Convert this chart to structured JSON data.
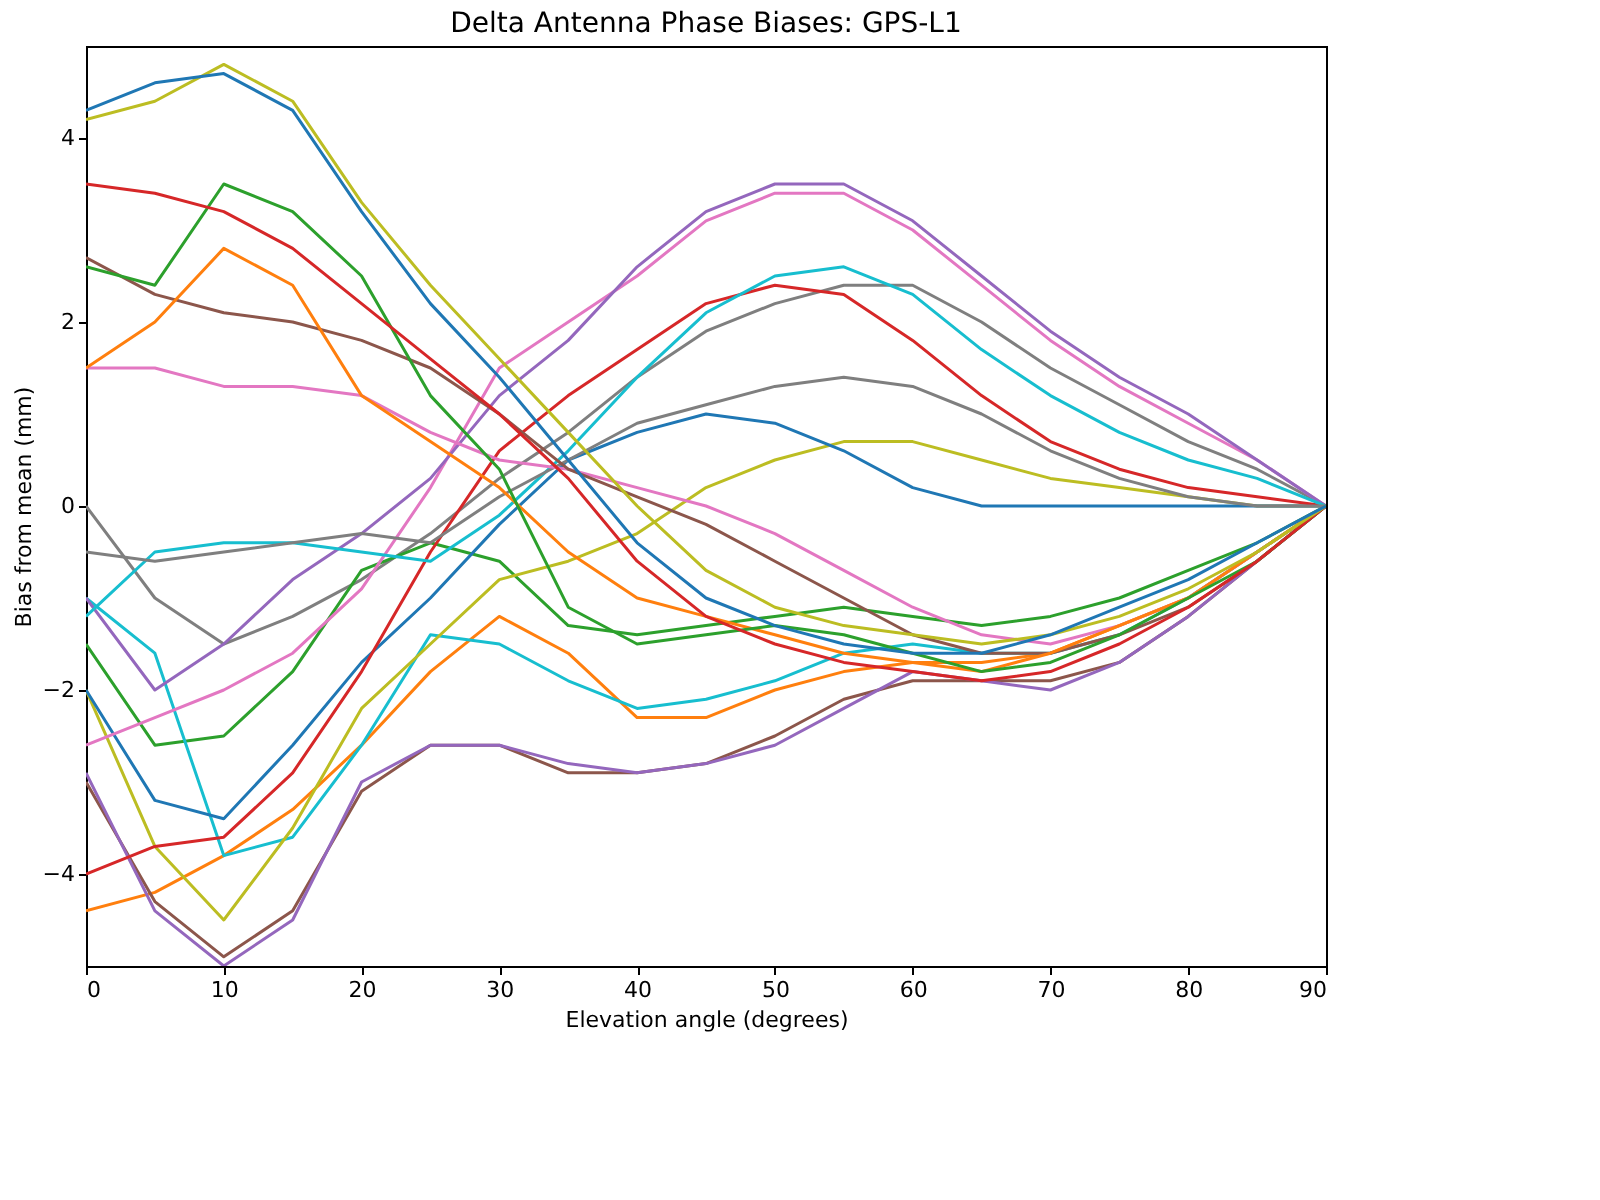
{
  "chart_data": {
    "type": "line",
    "title": "Delta Antenna Phase Biases: GPS-L1",
    "xlabel": "Elevation angle (degrees)",
    "ylabel": "Bias from mean (mm)",
    "x": [
      0,
      5,
      10,
      15,
      20,
      25,
      30,
      35,
      40,
      45,
      50,
      55,
      60,
      65,
      70,
      75,
      80,
      85,
      90
    ],
    "xlim": [
      0,
      90
    ],
    "xticks": [
      0,
      10,
      20,
      30,
      40,
      50,
      60,
      70,
      80,
      90
    ],
    "ylim": [
      -5,
      5
    ],
    "yticks": [
      -4,
      -2,
      0,
      2,
      4
    ],
    "grid": false,
    "legend": false,
    "marker": "none",
    "line_style": "solid",
    "series": [
      {
        "color": "#1f77b4",
        "values": [
          4.3,
          4.6,
          4.7,
          4.3,
          3.2,
          2.2,
          1.4,
          0.5,
          -0.4,
          -1.0,
          -1.3,
          -1.5,
          -1.6,
          -1.6,
          -1.4,
          -1.1,
          -0.8,
          -0.4,
          0
        ]
      },
      {
        "color": "#bcbd22",
        "values": [
          4.2,
          4.4,
          4.8,
          4.4,
          3.3,
          2.4,
          1.6,
          0.8,
          0.0,
          -0.7,
          -1.1,
          -1.3,
          -1.4,
          -1.5,
          -1.4,
          -1.2,
          -0.9,
          -0.5,
          0
        ]
      },
      {
        "color": "#d62728",
        "values": [
          3.5,
          3.4,
          3.2,
          2.8,
          2.2,
          1.6,
          1.0,
          0.3,
          -0.6,
          -1.2,
          -1.5,
          -1.7,
          -1.8,
          -1.9,
          -1.8,
          -1.5,
          -1.1,
          -0.6,
          0
        ]
      },
      {
        "color": "#2ca02c",
        "values": [
          2.6,
          2.4,
          3.5,
          3.2,
          2.5,
          1.2,
          0.4,
          -1.1,
          -1.5,
          -1.4,
          -1.3,
          -1.4,
          -1.6,
          -1.8,
          -1.7,
          -1.4,
          -1.0,
          -0.6,
          0
        ]
      },
      {
        "color": "#ff7f0e",
        "values": [
          1.5,
          2.0,
          2.8,
          2.4,
          1.2,
          0.7,
          0.2,
          -0.5,
          -1.0,
          -1.2,
          -1.4,
          -1.6,
          -1.7,
          -1.8,
          -1.6,
          -1.3,
          -1.0,
          -0.5,
          0
        ]
      },
      {
        "color": "#8c564b",
        "values": [
          2.7,
          2.3,
          2.1,
          2.0,
          1.8,
          1.5,
          1.0,
          0.4,
          0.1,
          -0.2,
          -0.6,
          -1.0,
          -1.4,
          -1.6,
          -1.6,
          -1.4,
          -1.1,
          -0.6,
          0
        ]
      },
      {
        "color": "#e377c2",
        "values": [
          1.5,
          1.5,
          1.3,
          1.3,
          1.2,
          0.8,
          0.5,
          0.4,
          0.2,
          0.0,
          -0.3,
          -0.7,
          -1.1,
          -1.4,
          -1.5,
          -1.3,
          -1.0,
          -0.5,
          0
        ]
      },
      {
        "color": "#7f7f7f",
        "values": [
          -0.5,
          -0.6,
          -0.5,
          -0.4,
          -0.3,
          -0.4,
          0.1,
          0.5,
          0.9,
          1.1,
          1.3,
          1.4,
          1.3,
          1.0,
          0.6,
          0.3,
          0.1,
          0.0,
          0
        ]
      },
      {
        "color": "#17becf",
        "values": [
          -1.2,
          -0.5,
          -0.4,
          -0.4,
          -0.5,
          -0.6,
          -0.1,
          0.6,
          1.4,
          2.1,
          2.5,
          2.6,
          2.3,
          1.7,
          1.2,
          0.8,
          0.5,
          0.3,
          0
        ]
      },
      {
        "color": "#9467bd",
        "values": [
          -1.0,
          -2.0,
          -1.5,
          -0.8,
          -0.3,
          0.3,
          1.2,
          1.8,
          2.6,
          3.2,
          3.5,
          3.5,
          3.1,
          2.5,
          1.9,
          1.4,
          1.0,
          0.5,
          0
        ]
      },
      {
        "color": "#e377c2",
        "values": [
          -2.6,
          -2.3,
          -2.0,
          -1.6,
          -0.9,
          0.2,
          1.5,
          2.0,
          2.5,
          3.1,
          3.4,
          3.4,
          3.0,
          2.4,
          1.8,
          1.3,
          0.9,
          0.5,
          0
        ]
      },
      {
        "color": "#d62728",
        "values": [
          -4.0,
          -3.7,
          -3.6,
          -2.9,
          -1.8,
          -0.5,
          0.6,
          1.2,
          1.7,
          2.2,
          2.4,
          2.3,
          1.8,
          1.2,
          0.7,
          0.4,
          0.2,
          0.1,
          0
        ]
      },
      {
        "color": "#1f77b4",
        "values": [
          -2.0,
          -3.2,
          -3.4,
          -2.6,
          -1.7,
          -1.0,
          -0.2,
          0.5,
          0.8,
          1.0,
          0.9,
          0.6,
          0.2,
          0.0,
          0.0,
          0.0,
          0.0,
          0.0,
          0
        ]
      },
      {
        "color": "#bcbd22",
        "values": [
          -2.0,
          -3.7,
          -4.5,
          -3.5,
          -2.2,
          -1.5,
          -0.8,
          -0.6,
          -0.3,
          0.2,
          0.5,
          0.7,
          0.7,
          0.5,
          0.3,
          0.2,
          0.1,
          0.0,
          0
        ]
      },
      {
        "color": "#9467bd",
        "values": [
          -2.9,
          -4.4,
          -5.0,
          -4.5,
          -3.0,
          -2.6,
          -2.6,
          -2.8,
          -2.9,
          -2.8,
          -2.6,
          -2.2,
          -1.8,
          -1.9,
          -2.0,
          -1.7,
          -1.2,
          -0.6,
          0
        ]
      },
      {
        "color": "#8c564b",
        "values": [
          -3.0,
          -4.3,
          -4.9,
          -4.4,
          -3.1,
          -2.6,
          -2.6,
          -2.9,
          -2.9,
          -2.8,
          -2.5,
          -2.1,
          -1.9,
          -1.9,
          -1.9,
          -1.7,
          -1.2,
          -0.6,
          0
        ]
      },
      {
        "color": "#17becf",
        "values": [
          -1.0,
          -1.6,
          -3.8,
          -3.6,
          -2.6,
          -1.4,
          -1.5,
          -1.9,
          -2.2,
          -2.1,
          -1.9,
          -1.6,
          -1.5,
          -1.6,
          -1.6,
          -1.4,
          -1.0,
          -0.5,
          0
        ]
      },
      {
        "color": "#ff7f0e",
        "values": [
          -4.4,
          -4.2,
          -3.8,
          -3.3,
          -2.6,
          -1.8,
          -1.2,
          -1.6,
          -2.3,
          -2.3,
          -2.0,
          -1.8,
          -1.7,
          -1.7,
          -1.6,
          -1.3,
          -1.0,
          -0.5,
          0
        ]
      },
      {
        "color": "#2ca02c",
        "values": [
          -1.5,
          -2.6,
          -2.5,
          -1.8,
          -0.7,
          -0.4,
          -0.6,
          -1.3,
          -1.4,
          -1.3,
          -1.2,
          -1.1,
          -1.2,
          -1.3,
          -1.2,
          -1.0,
          -0.7,
          -0.4,
          0
        ]
      },
      {
        "color": "#7f7f7f",
        "values": [
          0.0,
          -1.0,
          -1.5,
          -1.2,
          -0.8,
          -0.3,
          0.3,
          0.8,
          1.4,
          1.9,
          2.2,
          2.4,
          2.4,
          2.0,
          1.5,
          1.1,
          0.7,
          0.4,
          0
        ]
      }
    ]
  }
}
